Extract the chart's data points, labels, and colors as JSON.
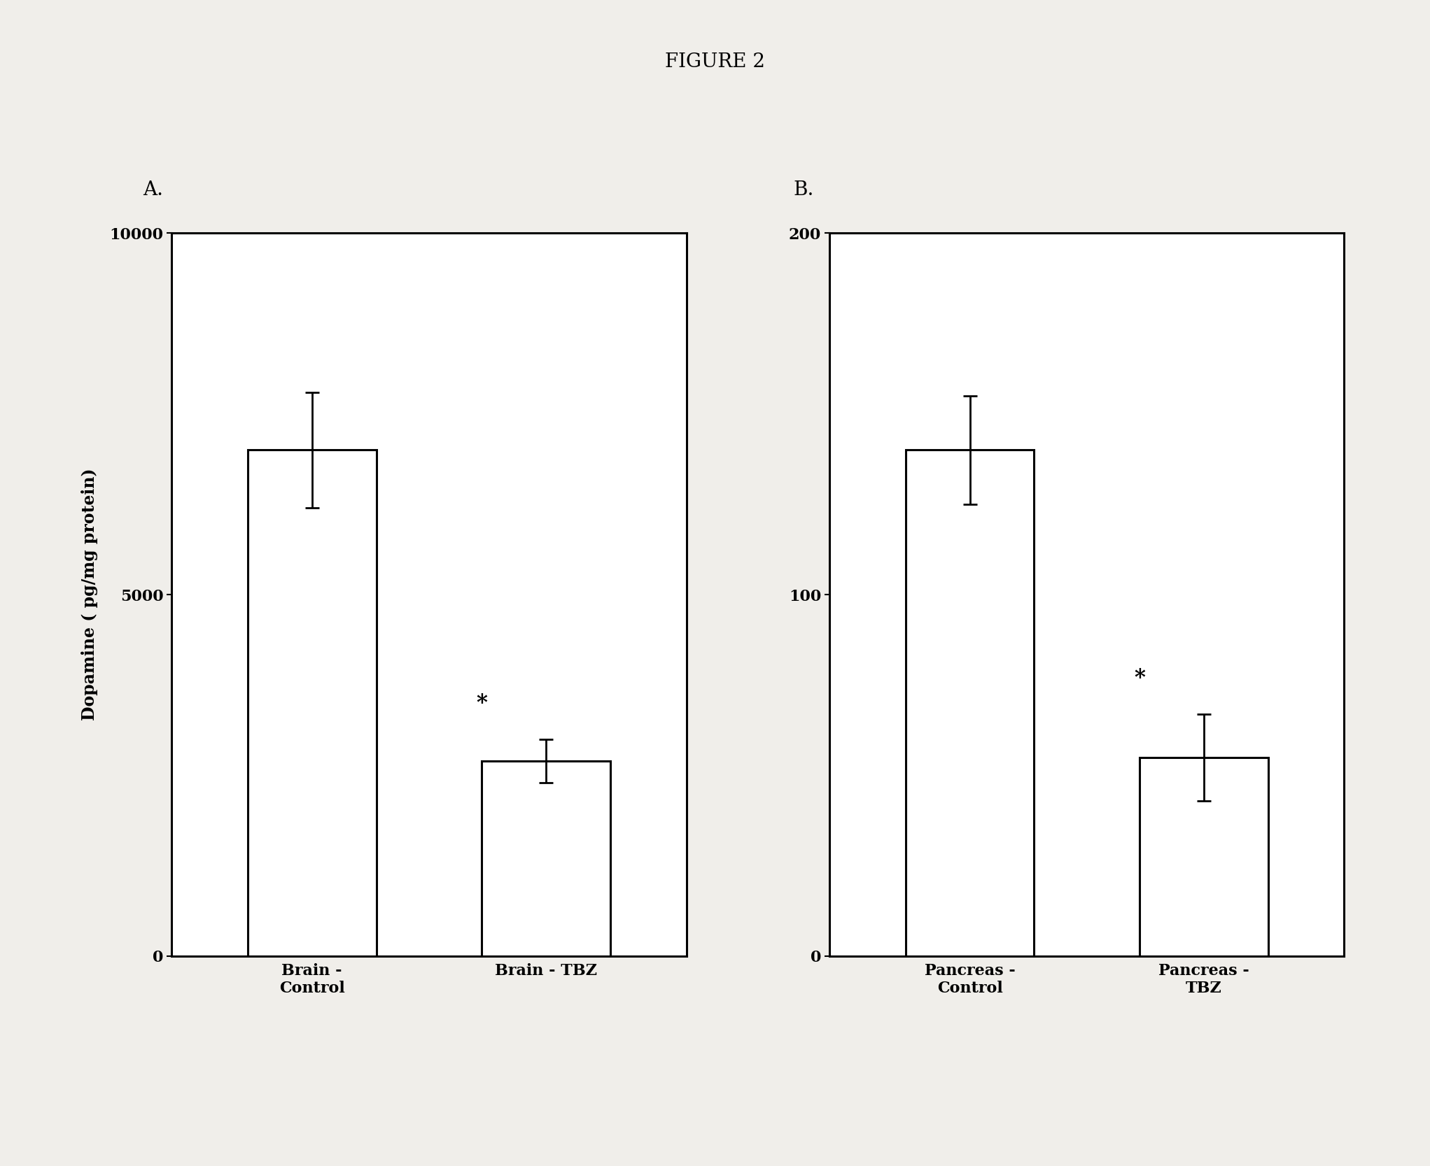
{
  "figure_title": "FIGURE 2",
  "panel_A_label": "A.",
  "panel_B_label": "B.",
  "A": {
    "categories": [
      "Brain -\nControl",
      "Brain - TBZ"
    ],
    "values": [
      7000,
      2700
    ],
    "errors": [
      800,
      300
    ],
    "ylim": [
      0,
      10000
    ],
    "yticks": [
      0,
      5000,
      10000
    ],
    "ylabel": "Dopamine ( pg/mg protein)",
    "bar_color": "white",
    "bar_edgecolor": "black",
    "asterisk_idx": 1
  },
  "B": {
    "categories": [
      "Pancreas -\nControl",
      "Pancreas -\nTBZ"
    ],
    "values": [
      140,
      55
    ],
    "errors": [
      15,
      12
    ],
    "ylim": [
      0,
      200
    ],
    "yticks": [
      0,
      100,
      200
    ],
    "ylabel": "",
    "bar_color": "white",
    "bar_edgecolor": "black",
    "asterisk_idx": 1
  },
  "background_color": "#f0eeea",
  "axes_background": "white",
  "title_fontsize": 20,
  "label_fontsize": 17,
  "tick_fontsize": 16,
  "xlabel_fontsize": 16,
  "panel_label_fontsize": 20,
  "bar_width": 0.55,
  "capsize": 7
}
